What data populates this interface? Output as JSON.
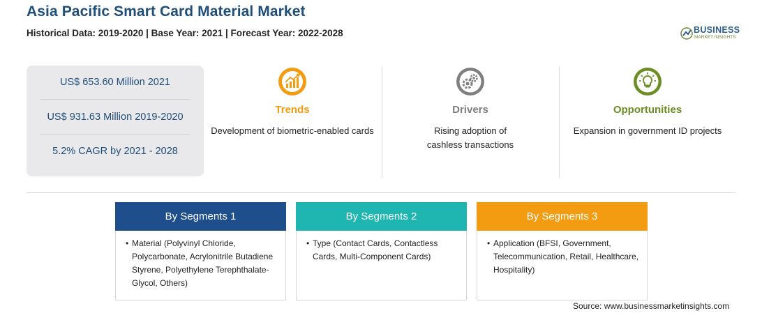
{
  "header": {
    "title": "Asia Pacific Smart Card Material Market",
    "subtitle": "Historical Data: 2019-2020 | Base Year: 2021 | Forecast Year: 2022-2028"
  },
  "logo": {
    "line1": "BUSINESS",
    "line2": "MARKET INSIGHTS"
  },
  "stats": [
    "US$ 653.60 Million 2021",
    "US$ 931.63 Million 2019-2020",
    "5.2% CAGR by 2021 - 2028"
  ],
  "cards": [
    {
      "heading": "Trends",
      "text": "Development of biometric-enabled cards",
      "color": "#f39c12",
      "icon": "chart-trend-icon"
    },
    {
      "heading": "Drivers",
      "text": "Rising adoption of cashless transactions",
      "color": "#7f7f7f",
      "icon": "gears-icon"
    },
    {
      "heading": "Opportunities",
      "text": "Expansion in government ID projects",
      "color": "#6b8e23",
      "icon": "lightbulb-icon"
    }
  ],
  "segments": [
    {
      "title": "By Segments 1",
      "color": "#1f4e8c",
      "items": [
        "Material (Polyvinyl Chloride, Polycarbonate, Acrylonitrile Butadiene Styrene, Polyethylene Terephthalate-Glycol, Others)"
      ]
    },
    {
      "title": "By Segments 2",
      "color": "#1fb5b0",
      "items": [
        "Type (Contact Cards, Contactless Cards, Multi-Component Cards)"
      ]
    },
    {
      "title": "By Segments 3",
      "color": "#f39c12",
      "items": [
        "Application (BFSI, Government, Telecommunication, Retail, Healthcare, Hospitality)"
      ]
    }
  ],
  "source": "Source: www.businessmarketinsights.com",
  "bullet": "•"
}
